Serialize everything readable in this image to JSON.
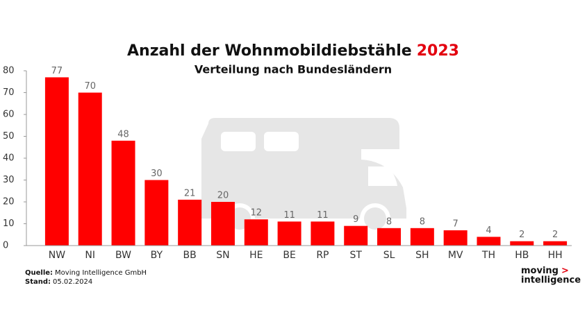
{
  "chart_data": {
    "type": "bar",
    "title": "Anzahl der Wohnmobildiebstähle",
    "title_highlight": "2023",
    "subtitle": "Verteilung nach Bundesländern",
    "categories": [
      "NW",
      "NI",
      "BW",
      "BY",
      "BB",
      "SN",
      "HE",
      "BE",
      "RP",
      "ST",
      "SL",
      "SH",
      "MV",
      "TH",
      "HB",
      "HH"
    ],
    "values": [
      77,
      70,
      48,
      30,
      21,
      20,
      12,
      11,
      11,
      9,
      8,
      8,
      7,
      4,
      2,
      2
    ],
    "color": "#ff0000",
    "highlight_color": "#e3000f",
    "ylim": [
      0,
      80
    ],
    "yticks": [
      0,
      10,
      20,
      30,
      40,
      50,
      60,
      70,
      80
    ],
    "source_label": "Quelle:",
    "source": "Moving Intelligence GmbH",
    "date_label": "Stand:",
    "date": "05.02.2024",
    "logo": [
      "moving",
      ">",
      "intelligence"
    ]
  }
}
